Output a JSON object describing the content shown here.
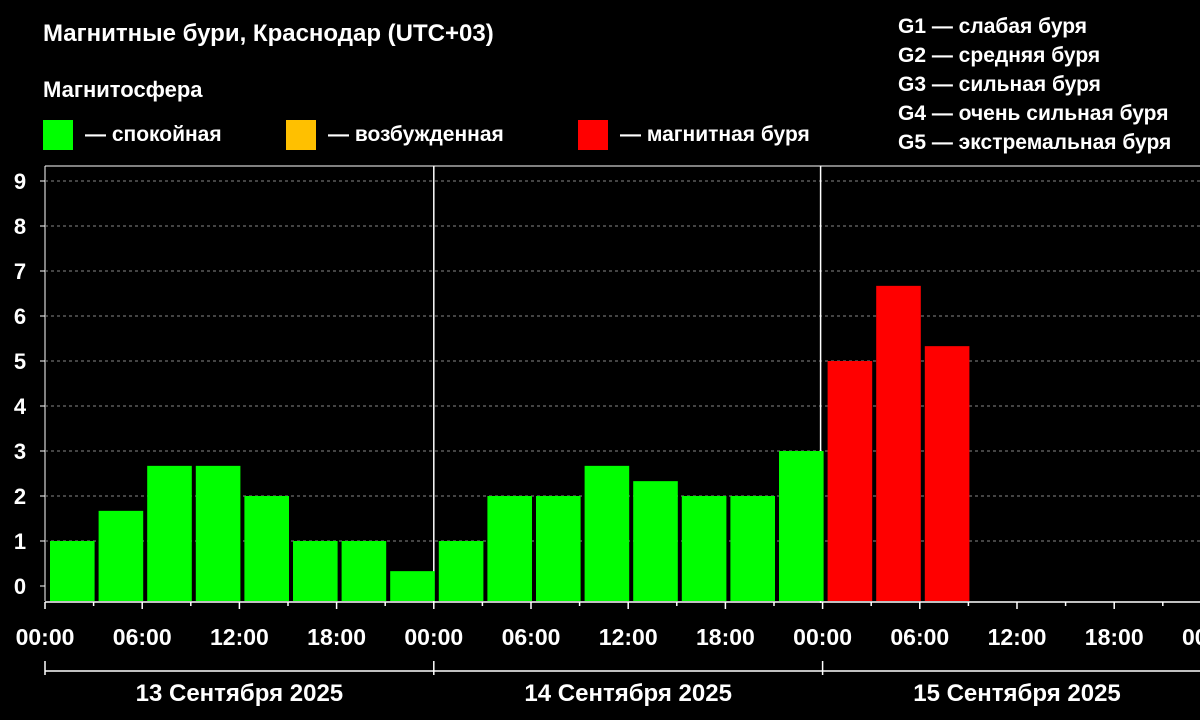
{
  "title": "Магнитные бури, Краснодар (UTC+03)",
  "magnetosphere_label": "Магнитосфера",
  "legend": [
    {
      "label": "— спокойная",
      "color": "#00ff00"
    },
    {
      "label": "— возбужденная",
      "color": "#ffc000"
    },
    {
      "label": "— магнитная буря",
      "color": "#ff0000"
    }
  ],
  "g_scale": [
    "G1 — слабая буря",
    "G2 — средняя буря",
    "G3 — сильная буря",
    "G4 — очень сильная буря",
    "G5 — экстремальная буря"
  ],
  "chart_data": {
    "type": "bar",
    "ylim": [
      0,
      9
    ],
    "yticks": [
      "0",
      "1",
      "2",
      "3",
      "4",
      "5",
      "6",
      "7",
      "8",
      "9"
    ],
    "grid": true,
    "x_tick_labels": [
      "00:00",
      "06:00",
      "12:00",
      "18:00",
      "00:00",
      "06:00",
      "12:00",
      "18:00",
      "00:00",
      "06:00",
      "12:00",
      "18:00",
      "00:00"
    ],
    "days": [
      "13 Сентября 2025",
      "14 Сентября 2025",
      "15 Сентября 2025"
    ],
    "interval_hours": 3,
    "values": [
      1.0,
      1.67,
      2.67,
      2.67,
      2.0,
      1.0,
      1.0,
      0.33,
      1.0,
      2.0,
      2.0,
      2.67,
      2.33,
      2.0,
      2.0,
      3.0,
      5.0,
      6.67,
      5.33
    ],
    "colors": [
      "#00ff00",
      "#00ff00",
      "#00ff00",
      "#00ff00",
      "#00ff00",
      "#00ff00",
      "#00ff00",
      "#00ff00",
      "#00ff00",
      "#00ff00",
      "#00ff00",
      "#00ff00",
      "#00ff00",
      "#00ff00",
      "#00ff00",
      "#00ff00",
      "#ff0000",
      "#ff0000",
      "#ff0000"
    ]
  }
}
